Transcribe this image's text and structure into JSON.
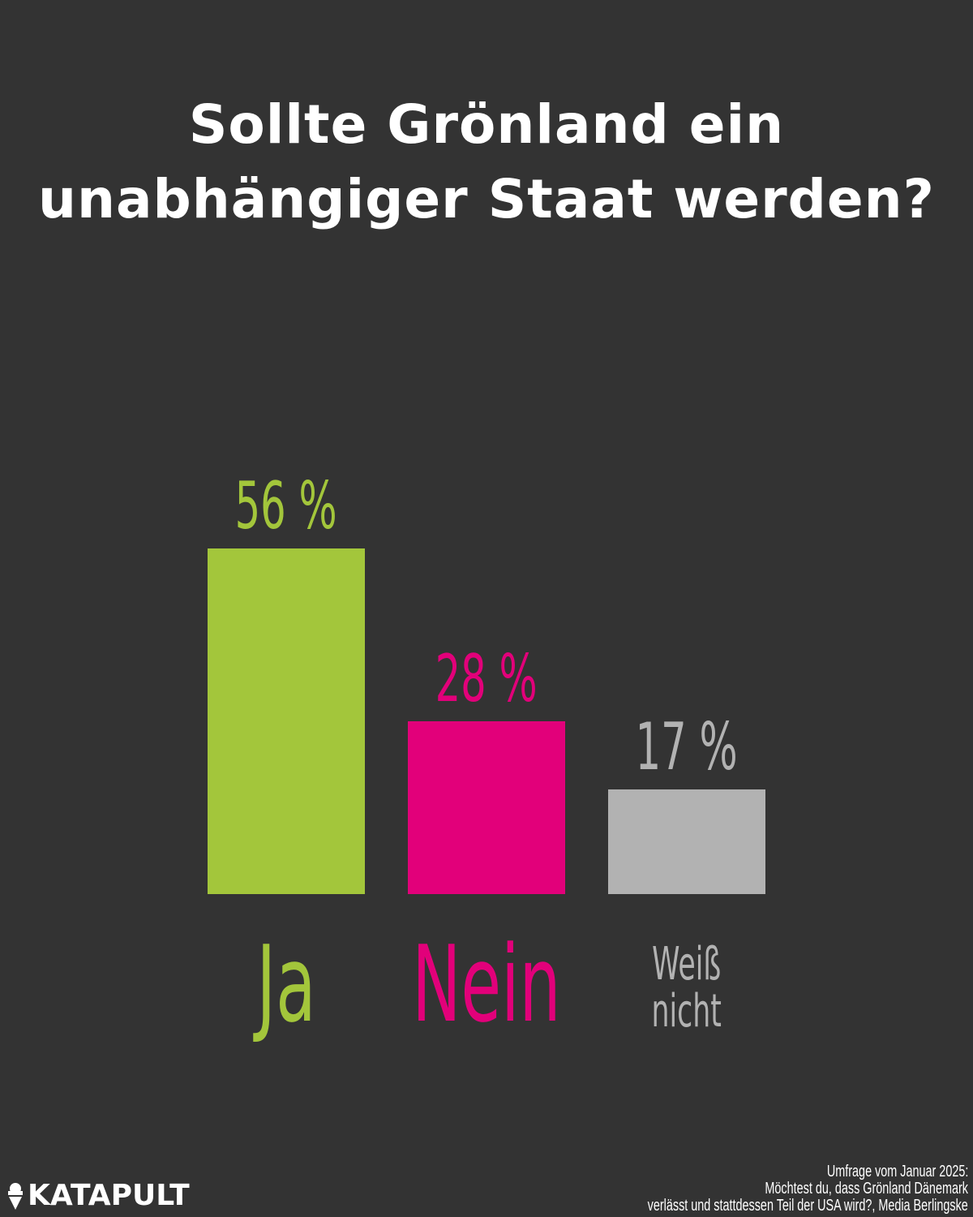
{
  "chart_data": {
    "type": "bar",
    "title": "Sollte Grönland ein unabhängiger Staat werden?",
    "title_lines": [
      "Sollte Grönland ein",
      "unabhängiger Staat werden?"
    ],
    "categories": [
      "Ja",
      "Nein",
      "Weiß nicht"
    ],
    "category_lines": [
      [
        "Ja"
      ],
      [
        "Nein"
      ],
      [
        "Weiß",
        "nicht"
      ]
    ],
    "values": [
      56,
      28,
      17
    ],
    "value_labels": [
      "56 %",
      "28 %",
      "17 %"
    ],
    "colors": [
      "#a3c63b",
      "#e2007a",
      "#b2b2b2"
    ],
    "unit": "%",
    "ylim": [
      0,
      56
    ],
    "grid": false,
    "xlabel": "",
    "ylabel": ""
  },
  "source": [
    "Umfrage vom Januar 2025:",
    "Möchtest du,  dass Grönland Dänemark",
    "verlässt und stattdessen Teil der USA wird?, Media Berlingske"
  ],
  "logo": {
    "text": "KATAPULT",
    "icon": "ice-cream-icon"
  }
}
